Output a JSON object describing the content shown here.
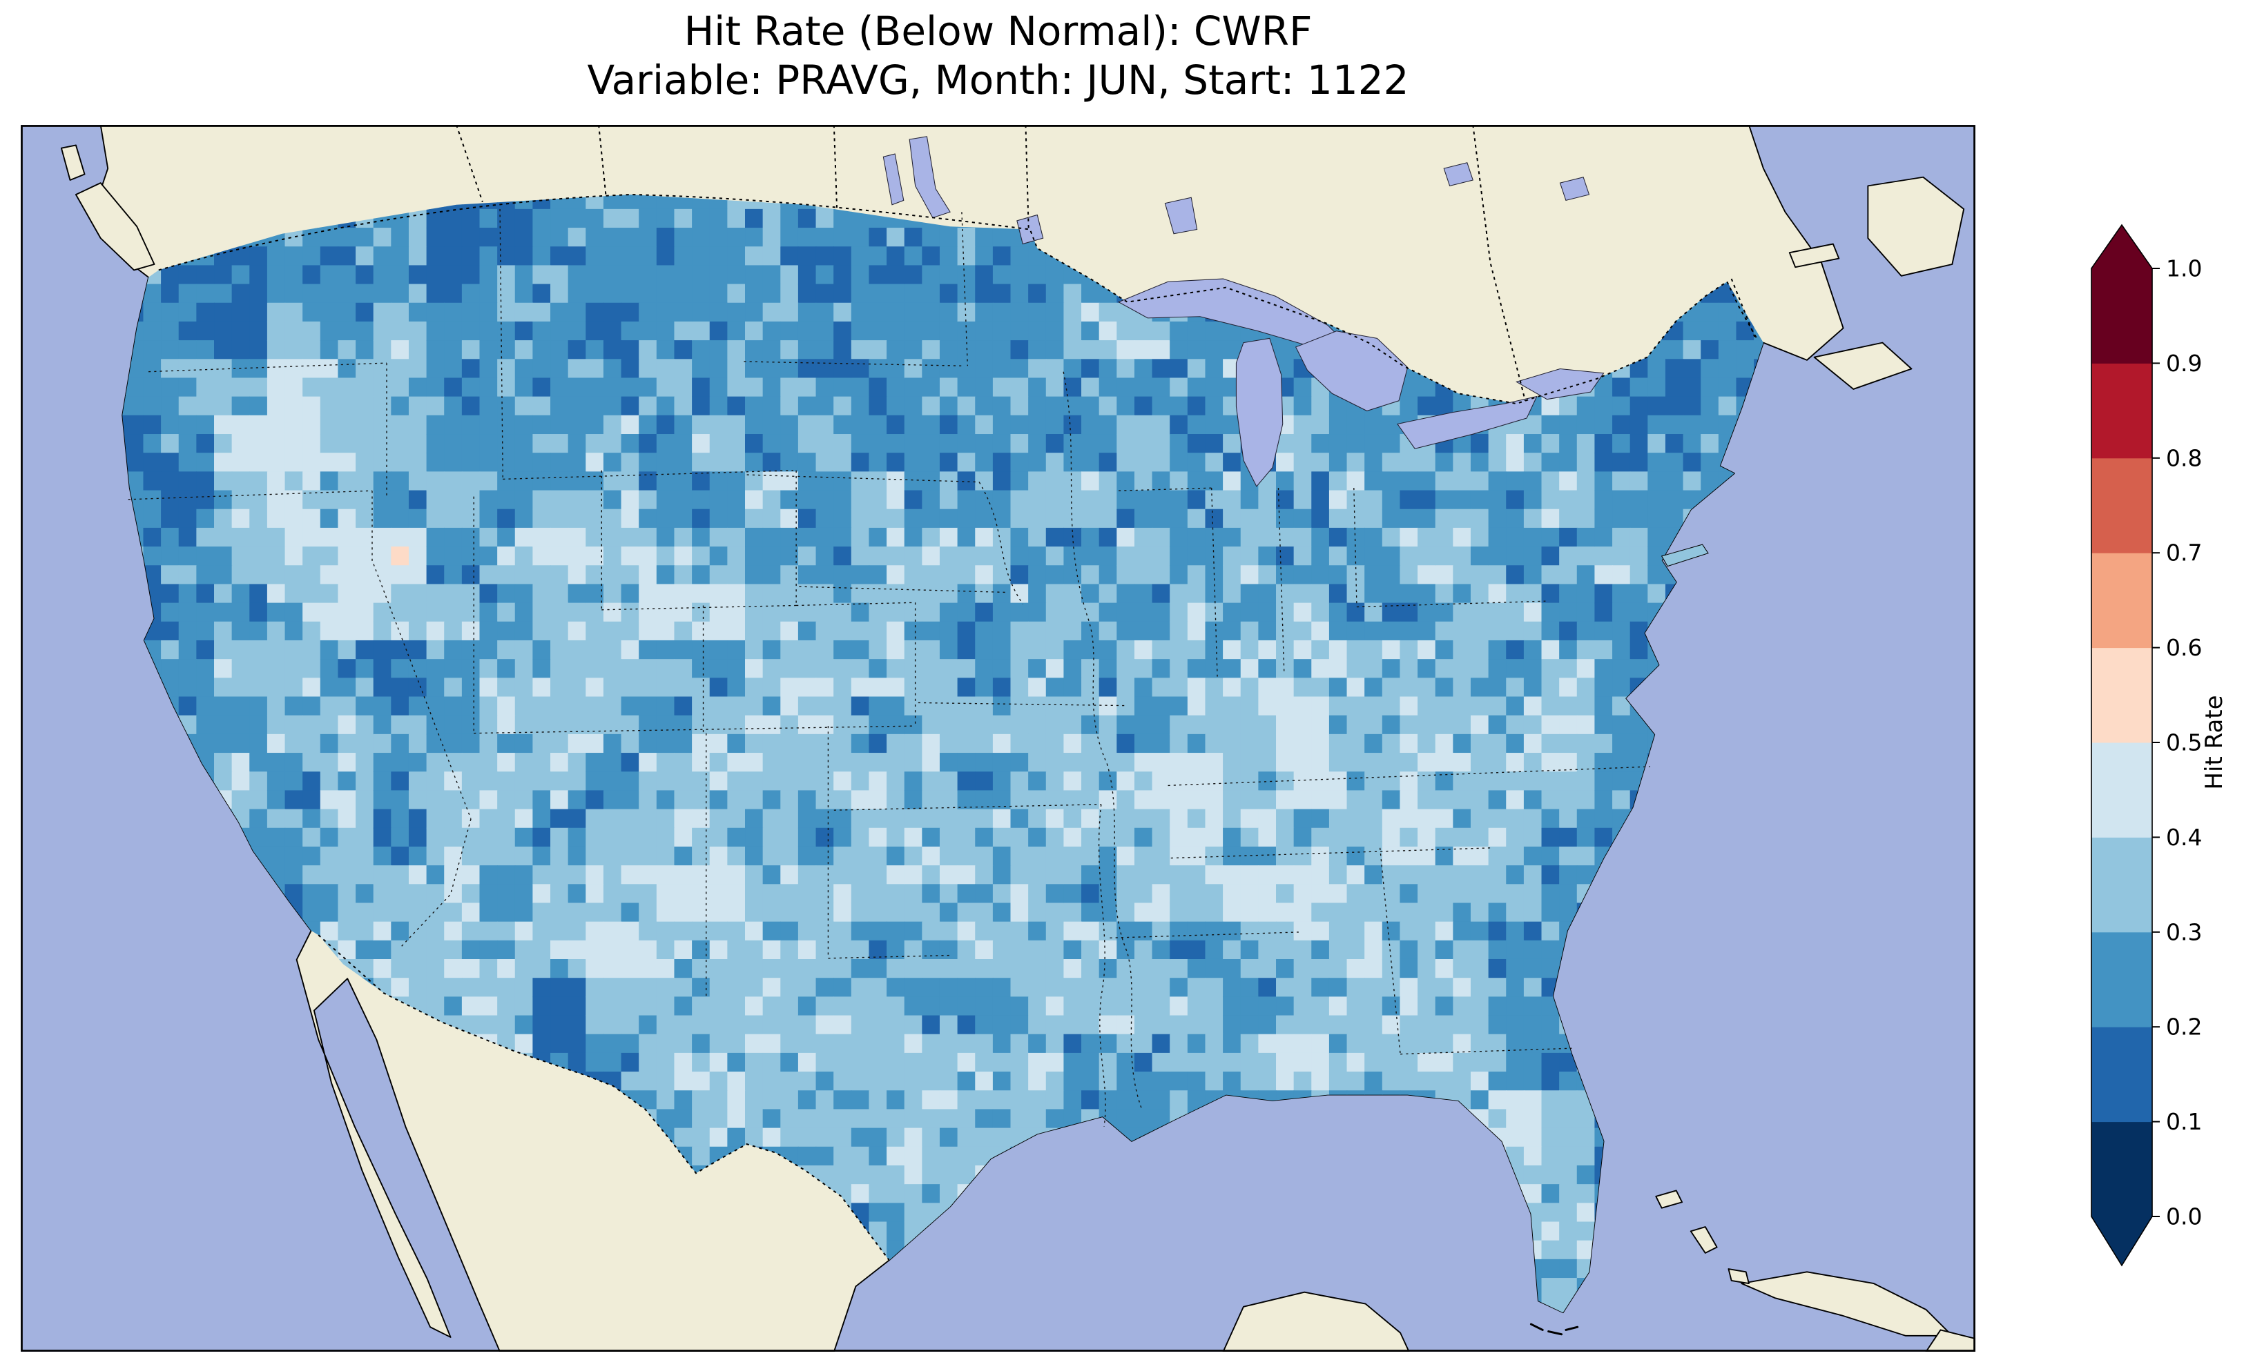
{
  "title": {
    "line1": "Hit Rate (Below Normal): CWRF",
    "line2": "Variable: PRAVG, Month: JUN, Start: 1122"
  },
  "colorbar": {
    "label": "Hit Rate",
    "ticks_low_to_high": [
      "0.0",
      "0.1",
      "0.2",
      "0.3",
      "0.4",
      "0.5",
      "0.6",
      "0.7",
      "0.8",
      "0.9",
      "1.0"
    ],
    "segment_colors_low_to_high": [
      "#053061",
      "#2166ac",
      "#4393c3",
      "#92c5de",
      "#d1e5f0",
      "#fddbc7",
      "#f4a582",
      "#d6604d",
      "#b2182b",
      "#67001f"
    ],
    "under_arrow_color": "#053061",
    "over_arrow_color": "#67001f"
  },
  "map": {
    "ocean_color": "#a3b2df",
    "land_color": "#f0edd8",
    "lake_color": "#a9b4e6",
    "coast_color": "#000000"
  },
  "chart_data": {
    "type": "heatmap",
    "title": "Hit Rate (Below Normal): CWRF",
    "subtitle": "Variable: PRAVG, Month: JUN, Start: 1122",
    "model": "CWRF",
    "variable": "PRAVG",
    "month": "JUN",
    "start": "1122",
    "colorbar_label": "Hit Rate",
    "value_range": [
      0.0,
      1.0
    ],
    "bin_edges": [
      0.0,
      0.1,
      0.2,
      0.3,
      0.4,
      0.5,
      0.6,
      0.7,
      0.8,
      0.9,
      1.0
    ],
    "region": "Contiguous United States",
    "legend_position": "right",
    "grid_rows": 20,
    "grid_cols": 32,
    "bin_colors": {
      "1": "#2166ac",
      "2": "#4393c3",
      "3": "#92c5de",
      "4": "#d1e5f0",
      "5": "#fddbc7"
    },
    "bin_value_ranges": {
      "1": "0.1-0.2",
      "2": "0.2-0.3",
      "3": "0.3-0.4",
      "4": "0.4-0.5",
      "5": "0.5-0.6"
    },
    "bin_index_grid": [
      "22222211222222222222222222222222",
      "21122212222221222222222222232222",
      "22132322212222222233222222332222",
      "23243322223222222322232222232122",
      "12443322232323222223223232321222",
      "21343232332232322332232323232222",
      "22334523433322333223232233223222",
      "12234332334433322332323223322222",
      "22332123333233332323333333232222",
      "22233223332333233332334333332222",
      "22323233323333332333434333332222",
      "22223133233332333333433343322222",
      "22223332334433333323344333322222",
      "22223333343333233333233333222222",
      "22222333133333322333323333222222",
      "22222233123333333322334333222222",
      "22222223222333333322222223432222",
      "22222222222223333222222222332222",
      "22222222222222232222222222332222",
      "22222222222222322222222222232222"
    ]
  }
}
